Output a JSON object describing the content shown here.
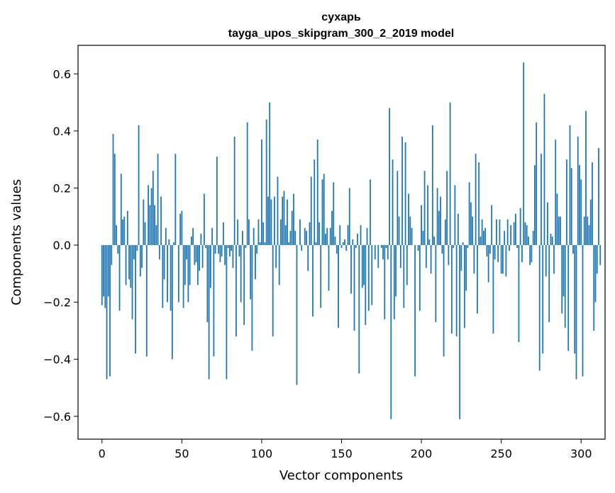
{
  "chart_data": {
    "type": "bar",
    "title": "сухарь",
    "subtitle": "tayga_upos_skipgram_300_2_2019 model",
    "xlabel": "Vector components",
    "ylabel": "Components values",
    "xlim": [
      -15,
      315
    ],
    "ylim": [
      -0.68,
      0.7
    ],
    "xticks": [
      0,
      50,
      100,
      150,
      200,
      250,
      300
    ],
    "xtick_labels": [
      "0",
      "50",
      "100",
      "150",
      "200",
      "250",
      "300"
    ],
    "yticks": [
      -0.6,
      -0.4,
      -0.2,
      0.0,
      0.2,
      0.4,
      0.6
    ],
    "ytick_labels": [
      "−0.6",
      "−0.4",
      "−0.2",
      "0.0",
      "0.2",
      "0.4",
      "0.6"
    ],
    "grid": false,
    "bar_color": "#1f77b4",
    "values": [
      -0.21,
      -0.18,
      -0.22,
      -0.47,
      -0.18,
      -0.46,
      -0.07,
      0.39,
      0.32,
      0.07,
      -0.03,
      -0.23,
      0.25,
      0.09,
      0.1,
      -0.14,
      0.12,
      -0.12,
      -0.15,
      -0.26,
      -0.05,
      -0.38,
      -0.02,
      0.42,
      -0.11,
      -0.08,
      0.16,
      0.08,
      -0.39,
      0.21,
      0.14,
      0.2,
      0.26,
      0.14,
      0.07,
      0.32,
      -0.05,
      0.17,
      -0.22,
      -0.12,
      0.06,
      -0.2,
      0.02,
      -0.23,
      -0.4,
      0.01,
      0.32,
      0.0,
      -0.2,
      0.11,
      0.12,
      -0.22,
      -0.14,
      -0.05,
      -0.2,
      -0.14,
      0.03,
      0.06,
      -0.07,
      -0.06,
      -0.14,
      -0.09,
      0.04,
      -0.08,
      0.18,
      -0.01,
      -0.27,
      -0.47,
      -0.15,
      0.06,
      -0.39,
      -0.03,
      0.31,
      -0.03,
      -0.06,
      -0.04,
      0.08,
      -0.07,
      -0.47,
      -0.01,
      -0.04,
      -0.02,
      -0.08,
      0.38,
      -0.32,
      0.09,
      -0.04,
      -0.2,
      0.05,
      -0.28,
      -0.01,
      0.43,
      0.09,
      -0.19,
      -0.37,
      0.06,
      -0.12,
      -0.03,
      0.09,
      0.01,
      0.37,
      0.08,
      0.01,
      0.44,
      0.17,
      0.5,
      0.16,
      -0.32,
      0.17,
      -0.08,
      0.24,
      -0.14,
      0.09,
      0.17,
      0.19,
      0.07,
      0.16,
      0.01,
      0.05,
      0.12,
      0.18,
      0.05,
      -0.49,
      0.0,
      0.09,
      -0.02,
      0.0,
      0.06,
      0.05,
      -0.09,
      0.08,
      0.24,
      -0.25,
      0.3,
      0.01,
      0.37,
      0.08,
      -0.22,
      0.23,
      0.25,
      0.04,
      0.06,
      -0.16,
      0.06,
      0.12,
      0.22,
      0.03,
      -0.03,
      -0.29,
      0.07,
      -0.01,
      0.01,
      0.02,
      -0.02,
      0.07,
      0.2,
      -0.17,
      0.02,
      -0.3,
      -0.01,
      0.04,
      -0.45,
      0.07,
      -0.15,
      -0.14,
      -0.28,
      0.06,
      -0.23,
      0.23,
      -0.21,
      0.0,
      -0.05,
      0.0,
      -0.08,
      0.0,
      -0.01,
      -0.05,
      -0.26,
      -0.01,
      -0.05,
      0.48,
      -0.61,
      0.3,
      -0.26,
      -0.18,
      0.26,
      0.1,
      -0.08,
      0.38,
      -0.22,
      0.36,
      -0.14,
      0.18,
      0.1,
      0.06,
      0.0,
      -0.46,
      0.0,
      -0.02,
      -0.23,
      0.14,
      0.05,
      0.26,
      -0.08,
      0.21,
      0.02,
      -0.1,
      0.42,
      0.03,
      -0.27,
      0.2,
      0.12,
      0.17,
      -0.03,
      -0.39,
      0.09,
      0.26,
      -0.07,
      0.5,
      -0.31,
      -0.01,
      0.21,
      -0.32,
      0.11,
      -0.61,
      -0.09,
      0.01,
      -0.29,
      -0.16,
      -0.01,
      0.22,
      0.15,
      0.1,
      -0.1,
      0.32,
      -0.24,
      0.29,
      0.03,
      0.09,
      0.05,
      0.06,
      -0.04,
      -0.13,
      -0.03,
      0.14,
      -0.31,
      -0.05,
      0.09,
      -0.06,
      0.09,
      -0.1,
      -0.1,
      0.05,
      -0.11,
      0.09,
      -0.02,
      0.07,
      0.0,
      0.08,
      0.11,
      -0.01,
      -0.34,
      0.13,
      -0.06,
      0.64,
      0.08,
      0.07,
      0.03,
      -0.07,
      -0.06,
      0.05,
      0.28,
      0.43,
      0.0,
      -0.44,
      0.32,
      -0.38,
      0.53,
      -0.11,
      0.15,
      -0.27,
      0.04,
      0.03,
      -0.1,
      0.37,
      0.18,
      0.1,
      0.1,
      -0.24,
      -0.18,
      -0.29,
      0.3,
      -0.37,
      0.42,
      0.27,
      -0.03,
      -0.38,
      -0.47,
      0.38,
      0.28,
      0.23,
      -0.46,
      0.1,
      0.47,
      0.1,
      0.07,
      0.16,
      0.29,
      -0.3,
      -0.2,
      -0.1,
      0.34,
      -0.07
    ]
  }
}
